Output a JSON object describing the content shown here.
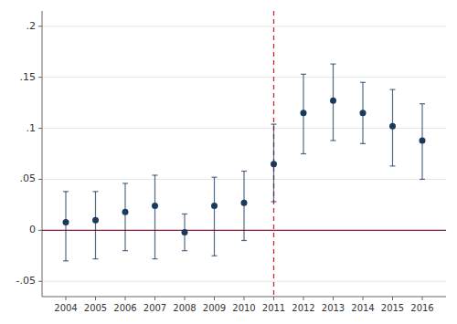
{
  "chart_data": {
    "type": "errorbar",
    "x": [
      2004,
      2005,
      2006,
      2007,
      2008,
      2009,
      2010,
      2011,
      2012,
      2013,
      2014,
      2015,
      2016
    ],
    "values": [
      0.008,
      0.01,
      0.018,
      0.024,
      -0.002,
      0.024,
      0.027,
      0.065,
      0.115,
      0.127,
      0.115,
      0.102,
      0.088
    ],
    "ci_lo": [
      -0.03,
      -0.028,
      -0.02,
      -0.028,
      -0.02,
      -0.025,
      -0.01,
      0.028,
      0.075,
      0.088,
      0.085,
      0.063,
      0.05
    ],
    "ci_hi": [
      0.038,
      0.038,
      0.046,
      0.054,
      0.016,
      0.052,
      0.058,
      0.104,
      0.153,
      0.163,
      0.145,
      0.138,
      0.124
    ],
    "color": "#1a3a5c",
    "hline": {
      "y": 0.0,
      "color": "#8b2035"
    },
    "vline": {
      "x": 2011,
      "color": "#cc2233"
    },
    "xlim": [
      2003.2,
      2016.8
    ],
    "xticks": [
      2004,
      2005,
      2006,
      2007,
      2008,
      2009,
      2010,
      2011,
      2012,
      2013,
      2014,
      2015,
      2016
    ],
    "ylim": [
      -0.065,
      0.215
    ],
    "yticks": [
      {
        "value": -0.05,
        "label": "-.05"
      },
      0,
      {
        "value": 0.05,
        "label": ".05"
      },
      {
        "value": 0.1,
        "label": ".1"
      },
      {
        "value": 0.15,
        "label": ".15"
      },
      {
        "value": 0.2,
        "label": ".2"
      }
    ],
    "grid": true
  }
}
